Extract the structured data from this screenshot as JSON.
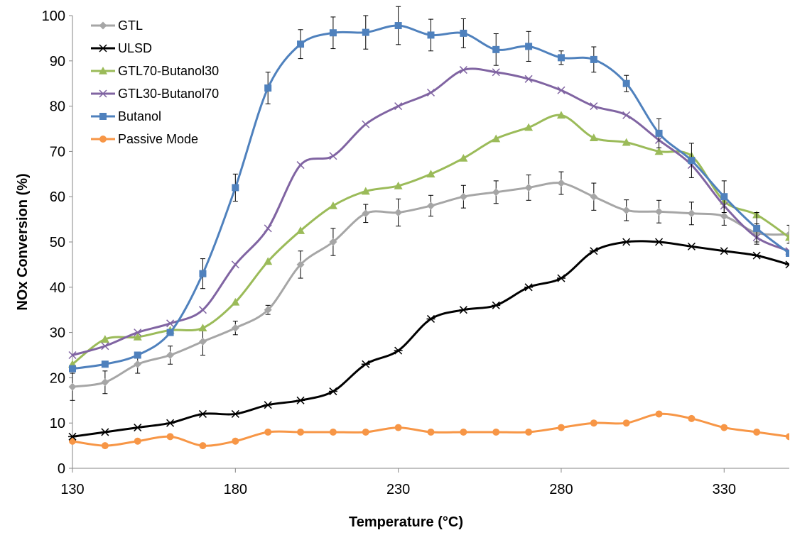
{
  "chart_data": {
    "type": "line",
    "xlabel": "Temperature (°C)",
    "ylabel": "NOx Conversion (%)",
    "xlim": [
      130,
      350
    ],
    "ylim": [
      0,
      100
    ],
    "x_ticks": [
      130,
      180,
      230,
      280,
      330
    ],
    "y_ticks": [
      0,
      10,
      20,
      30,
      40,
      50,
      60,
      70,
      80,
      90,
      100
    ],
    "grid": false,
    "legend_position": "top-left",
    "x": [
      130,
      140,
      150,
      160,
      170,
      180,
      190,
      200,
      210,
      220,
      230,
      240,
      250,
      260,
      270,
      280,
      290,
      300,
      310,
      320,
      330,
      340,
      350
    ],
    "series": [
      {
        "name": "GTL",
        "color": "#a6a6a6",
        "marker": "diamond",
        "values": [
          18,
          19,
          23,
          25,
          28,
          31,
          35,
          45,
          50,
          56.3,
          56.5,
          58,
          60,
          61,
          62,
          63,
          60,
          57,
          56.7,
          56.3,
          55.7,
          52,
          51.7
        ],
        "errors": [
          3,
          2.5,
          2,
          2,
          3,
          1.5,
          1,
          3,
          3,
          2,
          3,
          2.3,
          2.5,
          2.5,
          2.8,
          2.5,
          3,
          2.3,
          2.5,
          2.5,
          2,
          2,
          2
        ]
      },
      {
        "name": "ULSD",
        "color": "#000000",
        "marker": "asterisk",
        "values": [
          7,
          8,
          9,
          10,
          12,
          12,
          14,
          15,
          17,
          23,
          26,
          33,
          35,
          36,
          40,
          42,
          48,
          50,
          50,
          49,
          48,
          47,
          45
        ]
      },
      {
        "name": "GTL70-Butanol30",
        "color": "#9bbb59",
        "marker": "triangle",
        "values": [
          23,
          28.5,
          29,
          30.5,
          31,
          36.7,
          45.7,
          52.5,
          58,
          61.2,
          62.4,
          65,
          68.5,
          72.8,
          75.3,
          78,
          73,
          72,
          70,
          69,
          59,
          56,
          51
        ]
      },
      {
        "name": "GTL30-Butanol70",
        "color": "#8064a2",
        "marker": "x",
        "values": [
          25,
          27,
          30,
          32,
          35,
          45,
          53,
          67,
          69,
          76,
          80,
          83,
          88,
          87.5,
          86,
          83.5,
          80,
          78,
          72.5,
          67,
          58,
          51,
          48
        ]
      },
      {
        "name": "Butanol",
        "color": "#4f81bd",
        "marker": "square",
        "values": [
          22,
          23,
          25,
          30,
          43,
          62,
          84,
          93.7,
          96.2,
          96.3,
          97.8,
          95.7,
          96.1,
          92.5,
          93.2,
          90.7,
          90.3,
          85,
          74,
          68,
          60,
          53,
          47.5
        ],
        "errors": [
          0,
          0,
          0,
          0,
          3.3,
          3,
          3.5,
          3.2,
          3.5,
          3.7,
          4.2,
          3.5,
          3.2,
          3.5,
          3.3,
          1.5,
          2.8,
          1.8,
          3.2,
          3.8,
          3.5,
          3.5,
          0
        ]
      },
      {
        "name": "Passive Mode",
        "color": "#f79646",
        "marker": "circle",
        "values": [
          6,
          5,
          6,
          7,
          5,
          6,
          8,
          8,
          8,
          8,
          9,
          8,
          8,
          8,
          8,
          9,
          10,
          10,
          12,
          11,
          9,
          8,
          7
        ]
      }
    ]
  }
}
